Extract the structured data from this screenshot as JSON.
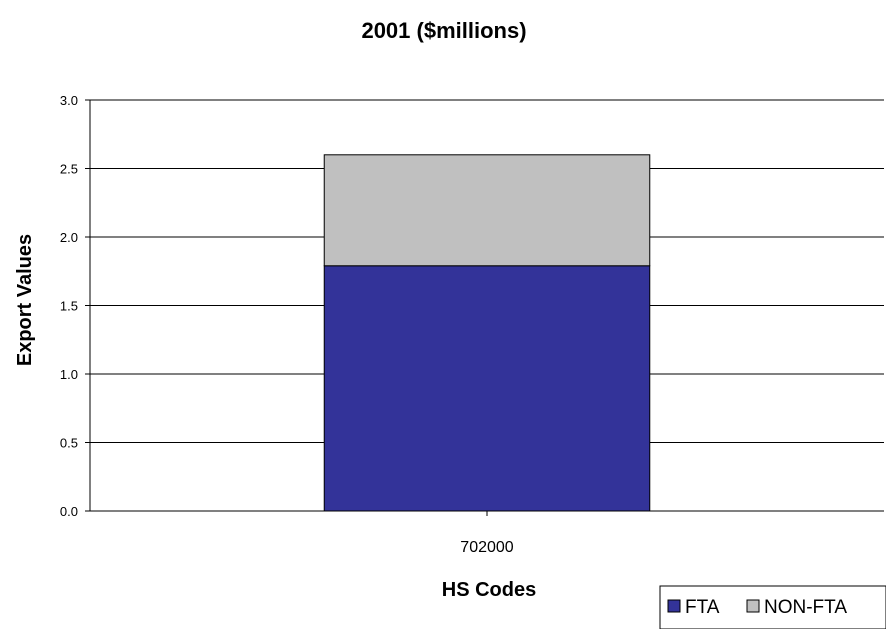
{
  "chart_data": {
    "type": "bar",
    "stacked": true,
    "title": "2001 ($millions)",
    "xlabel": "HS Codes",
    "ylabel": "Export Values",
    "categories": [
      "702000"
    ],
    "ylim": [
      0,
      3.0
    ],
    "yticks": [
      "0.0",
      "0.5",
      "1.0",
      "1.5",
      "2.0",
      "2.5",
      "3.0"
    ],
    "grid": true,
    "legend_position": "bottom-right",
    "series": [
      {
        "name": "FTA",
        "values": [
          1.79
        ],
        "color": "#333399"
      },
      {
        "name": "NON-FTA",
        "values": [
          0.81
        ],
        "color": "#c0c0c0"
      }
    ]
  }
}
